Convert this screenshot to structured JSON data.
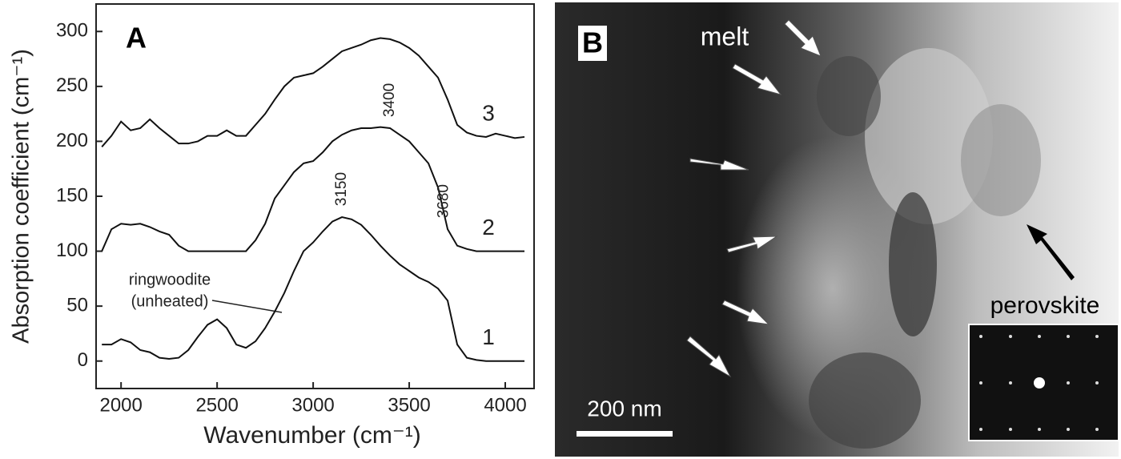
{
  "chart_data": {
    "type": "line",
    "panel_label": "A",
    "x_label": "Wavenumber (cm⁻¹)",
    "y_label": "Absorption coefficient (cm⁻¹)",
    "x": [
      1900,
      1950,
      2000,
      2050,
      2100,
      2150,
      2200,
      2250,
      2300,
      2350,
      2400,
      2450,
      2500,
      2550,
      2600,
      2650,
      2700,
      2750,
      2800,
      2850,
      2900,
      2950,
      3000,
      3050,
      3100,
      3150,
      3200,
      3250,
      3300,
      3350,
      3400,
      3450,
      3500,
      3550,
      3600,
      3650,
      3700,
      3750,
      3800,
      3850,
      3900,
      3950,
      4000,
      4050,
      4100
    ],
    "series": [
      {
        "name": "1",
        "color": "#111111",
        "values": [
          15,
          15,
          20,
          17,
          10,
          8,
          3,
          2,
          3,
          10,
          22,
          33,
          38,
          30,
          15,
          12,
          18,
          30,
          45,
          62,
          82,
          100,
          108,
          118,
          127,
          131,
          129,
          124,
          115,
          105,
          96,
          88,
          82,
          76,
          72,
          66,
          55,
          15,
          3,
          1,
          0,
          0,
          0,
          0,
          0
        ]
      },
      {
        "name": "2",
        "color": "#111111",
        "values": [
          100,
          120,
          125,
          124,
          125,
          122,
          118,
          115,
          105,
          100,
          100,
          100,
          100,
          100,
          100,
          100,
          110,
          125,
          148,
          160,
          172,
          180,
          182,
          190,
          200,
          206,
          210,
          212,
          212,
          213,
          212,
          206,
          200,
          190,
          180,
          158,
          120,
          105,
          102,
          100,
          100,
          100,
          100,
          100,
          100
        ]
      },
      {
        "name": "3",
        "color": "#111111",
        "values": [
          195,
          205,
          218,
          210,
          212,
          220,
          212,
          205,
          198,
          198,
          200,
          205,
          205,
          210,
          205,
          205,
          215,
          225,
          238,
          250,
          258,
          260,
          262,
          268,
          275,
          282,
          285,
          288,
          292,
          294,
          293,
          290,
          285,
          278,
          268,
          258,
          238,
          215,
          208,
          205,
          204,
          207,
          205,
          203,
          204
        ]
      }
    ],
    "peak_labels": [
      "3150",
      "3400",
      "3680"
    ],
    "annotation": [
      "ringwoodite",
      "(unheated)"
    ],
    "xlim": [
      1870,
      4150
    ],
    "ylim": [
      -25,
      325
    ],
    "xticks": [
      2000,
      2500,
      3000,
      3500,
      4000
    ],
    "yticks": [
      0,
      50,
      100,
      150,
      200,
      250,
      300
    ]
  },
  "panel_b": {
    "label": "B",
    "melt": "melt",
    "perovskite": "perovskite",
    "scale_bar": "200 nm"
  }
}
